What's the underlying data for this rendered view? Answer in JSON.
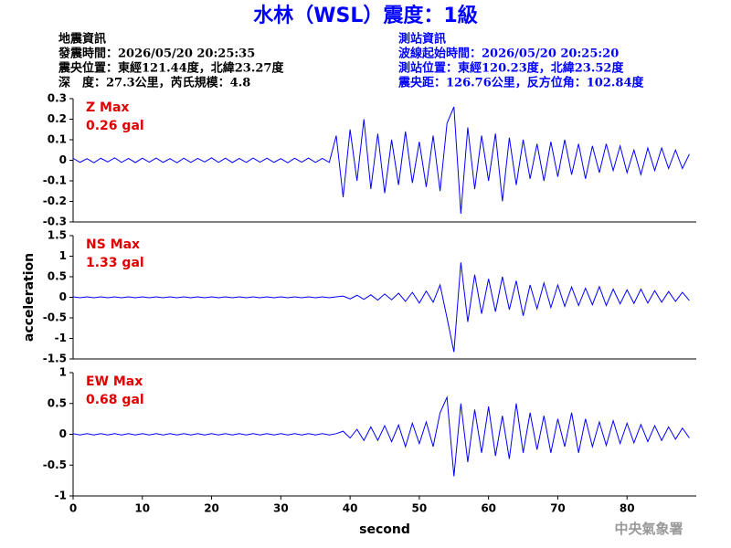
{
  "header": {
    "title": "水林（WSL）震度：1級",
    "event_info": [
      "地震資訊",
      "發震時間：2026/05/20 20:25:35",
      "震央位置：東經121.44度，北緯23.27度",
      "深　度：27.3公里，芮氏規模：4.8"
    ],
    "station_info": [
      "測站資訊",
      "波線起始時間：2026/05/20 20:25:20",
      "測站位置：東經120.23度，北緯23.52度",
      "震央距：126.76公里，反方位角：102.84度"
    ]
  },
  "footer": "中央氣象署",
  "chart_data": [
    {
      "type": "line",
      "annotations": [
        "Z Max",
        "0.26 gal"
      ],
      "color": "#0000ff",
      "x": [
        0,
        1,
        2,
        3,
        4,
        5,
        6,
        7,
        8,
        9,
        10,
        11,
        12,
        13,
        14,
        15,
        16,
        17,
        18,
        19,
        20,
        21,
        22,
        23,
        24,
        25,
        26,
        27,
        28,
        29,
        30,
        31,
        32,
        33,
        34,
        35,
        36,
        37,
        38,
        39,
        40,
        41,
        42,
        43,
        44,
        45,
        46,
        47,
        48,
        49,
        50,
        51,
        52,
        53,
        54,
        55,
        56,
        57,
        58,
        59,
        60,
        61,
        62,
        63,
        64,
        65,
        66,
        67,
        68,
        69,
        70,
        71,
        72,
        73,
        74,
        75,
        76,
        77,
        78,
        79,
        80,
        81,
        82,
        83,
        84,
        85,
        86,
        87,
        88,
        89
      ],
      "values": [
        0.01,
        -0.01,
        0.008,
        -0.012,
        0.01,
        -0.008,
        0.012,
        -0.01,
        0.009,
        -0.011,
        0.01,
        -0.009,
        0.011,
        -0.01,
        0.008,
        -0.012,
        0.01,
        -0.01,
        0.009,
        -0.008,
        0.012,
        -0.01,
        0.01,
        -0.011,
        0.009,
        -0.01,
        0.011,
        -0.009,
        0.01,
        -0.01,
        0.008,
        -0.012,
        0.01,
        -0.009,
        0.011,
        -0.01,
        0.009,
        -0.01,
        0.12,
        -0.18,
        0.15,
        -0.1,
        0.2,
        -0.14,
        0.13,
        -0.16,
        0.1,
        -0.12,
        0.14,
        -0.11,
        0.09,
        -0.13,
        0.12,
        -0.15,
        0.18,
        0.26,
        -0.26,
        0.16,
        -0.14,
        0.12,
        -0.1,
        0.13,
        -0.2,
        0.11,
        -0.12,
        0.1,
        -0.09,
        0.08,
        -0.1,
        0.09,
        -0.08,
        0.1,
        -0.07,
        0.08,
        -0.09,
        0.07,
        -0.06,
        0.08,
        -0.05,
        0.07,
        -0.06,
        0.05,
        -0.07,
        0.06,
        -0.05,
        0.06,
        -0.04,
        0.05,
        -0.04,
        0.03
      ],
      "xlim": [
        0,
        90
      ],
      "ylim": [
        -0.3,
        0.3
      ],
      "yticks": [
        0.3,
        0.2,
        0.1,
        0,
        -0.1,
        -0.2,
        -0.3
      ]
    },
    {
      "type": "line",
      "annotations": [
        "NS Max",
        "1.33 gal"
      ],
      "color": "#0000ff",
      "ylabel": "acceleration",
      "x": [
        0,
        1,
        2,
        3,
        4,
        5,
        6,
        7,
        8,
        9,
        10,
        11,
        12,
        13,
        14,
        15,
        16,
        17,
        18,
        19,
        20,
        21,
        22,
        23,
        24,
        25,
        26,
        27,
        28,
        29,
        30,
        31,
        32,
        33,
        34,
        35,
        36,
        37,
        38,
        39,
        40,
        41,
        42,
        43,
        44,
        45,
        46,
        47,
        48,
        49,
        50,
        51,
        52,
        53,
        54,
        55,
        56,
        57,
        58,
        59,
        60,
        61,
        62,
        63,
        64,
        65,
        66,
        67,
        68,
        69,
        70,
        71,
        72,
        73,
        74,
        75,
        76,
        77,
        78,
        79,
        80,
        81,
        82,
        83,
        84,
        85,
        86,
        87,
        88,
        89
      ],
      "values": [
        0.01,
        -0.01,
        0.01,
        -0.01,
        0.01,
        -0.01,
        0.01,
        -0.01,
        0.01,
        -0.01,
        0.01,
        -0.01,
        0.01,
        -0.01,
        0.01,
        -0.01,
        0.01,
        -0.01,
        0.01,
        -0.01,
        0.01,
        -0.01,
        0.01,
        -0.01,
        0.01,
        -0.01,
        0.01,
        -0.01,
        0.01,
        -0.01,
        0.01,
        -0.01,
        0.01,
        -0.01,
        0.01,
        -0.01,
        0.01,
        -0.01,
        0.01,
        0.03,
        -0.04,
        0.05,
        -0.05,
        0.06,
        -0.07,
        0.08,
        -0.06,
        0.1,
        -0.1,
        0.12,
        -0.14,
        0.15,
        -0.12,
        0.3,
        -0.5,
        -1.33,
        0.85,
        -0.6,
        0.55,
        -0.4,
        0.45,
        -0.35,
        0.5,
        -0.3,
        0.4,
        -0.45,
        0.3,
        -0.28,
        0.35,
        -0.25,
        0.3,
        -0.22,
        0.25,
        -0.2,
        0.22,
        -0.18,
        0.26,
        -0.2,
        0.2,
        -0.16,
        0.18,
        -0.15,
        0.2,
        -0.14,
        0.16,
        -0.12,
        0.14,
        -0.1,
        0.12,
        -0.08
      ],
      "xlim": [
        0,
        90
      ],
      "ylim": [
        -1.5,
        1.5
      ],
      "yticks": [
        1.5,
        1,
        0.5,
        0,
        -0.5,
        -1,
        -1.5
      ]
    },
    {
      "type": "line",
      "annotations": [
        "EW Max",
        "0.68 gal"
      ],
      "color": "#0000ff",
      "xlabel": "second",
      "x": [
        0,
        1,
        2,
        3,
        4,
        5,
        6,
        7,
        8,
        9,
        10,
        11,
        12,
        13,
        14,
        15,
        16,
        17,
        18,
        19,
        20,
        21,
        22,
        23,
        24,
        25,
        26,
        27,
        28,
        29,
        30,
        31,
        32,
        33,
        34,
        35,
        36,
        37,
        38,
        39,
        40,
        41,
        42,
        43,
        44,
        45,
        46,
        47,
        48,
        49,
        50,
        51,
        52,
        53,
        54,
        55,
        56,
        57,
        58,
        59,
        60,
        61,
        62,
        63,
        64,
        65,
        66,
        67,
        68,
        69,
        70,
        71,
        72,
        73,
        74,
        75,
        76,
        77,
        78,
        79,
        80,
        81,
        82,
        83,
        84,
        85,
        86,
        87,
        88,
        89
      ],
      "values": [
        0.01,
        -0.01,
        0.01,
        -0.01,
        0.01,
        -0.01,
        0.01,
        -0.01,
        0.01,
        -0.01,
        0.01,
        -0.01,
        0.01,
        -0.01,
        0.01,
        -0.01,
        0.01,
        -0.01,
        0.01,
        -0.01,
        0.01,
        -0.01,
        0.01,
        -0.01,
        0.01,
        -0.01,
        0.01,
        -0.01,
        0.01,
        -0.01,
        0.01,
        -0.01,
        0.01,
        -0.01,
        0.01,
        -0.01,
        0.01,
        -0.01,
        0.01,
        0.05,
        -0.06,
        0.08,
        -0.1,
        0.12,
        -0.1,
        0.14,
        -0.12,
        0.15,
        -0.2,
        0.18,
        -0.15,
        0.2,
        -0.2,
        0.35,
        0.6,
        -0.68,
        0.5,
        -0.45,
        0.4,
        -0.3,
        0.45,
        -0.35,
        0.3,
        -0.4,
        0.5,
        -0.3,
        0.35,
        -0.25,
        0.3,
        -0.3,
        0.25,
        -0.2,
        0.35,
        -0.3,
        0.25,
        -0.2,
        0.2,
        -0.18,
        0.22,
        -0.15,
        0.18,
        -0.14,
        0.16,
        -0.12,
        0.14,
        -0.1,
        0.12,
        -0.08,
        0.1,
        -0.06
      ],
      "xlim": [
        0,
        90
      ],
      "ylim": [
        -1,
        1
      ],
      "yticks": [
        1,
        0.5,
        0,
        -0.5,
        -1
      ],
      "xticks": [
        0,
        10,
        20,
        30,
        40,
        50,
        60,
        70,
        80
      ]
    }
  ]
}
